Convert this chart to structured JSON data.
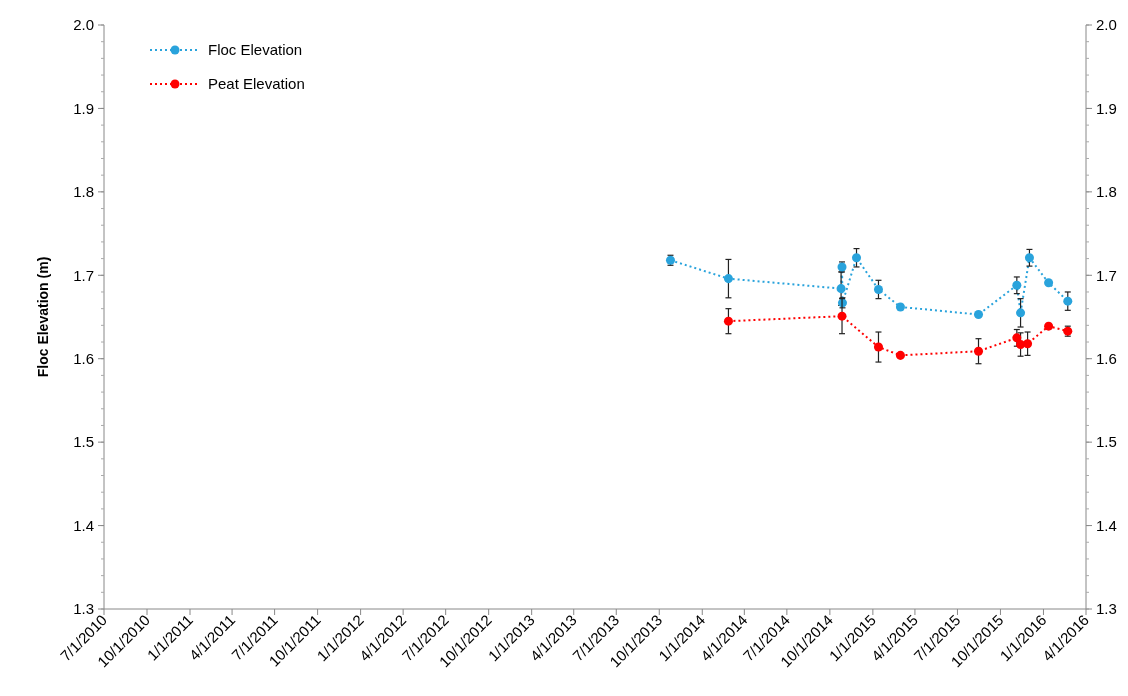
{
  "chart_data": {
    "type": "line",
    "ylabel": "Floc Elevation (m)",
    "legend": "top left",
    "marker": "circle",
    "line_style": "dotted",
    "grid": false,
    "xlim": [
      "2010-07-01",
      "2016-04-01"
    ],
    "xticks": [
      {
        "value": "2010-07-01",
        "label": "7/1/2010"
      },
      {
        "value": "2010-10-01",
        "label": "10/1/2010"
      },
      {
        "value": "2011-01-01",
        "label": "1/1/2011"
      },
      {
        "value": "2011-04-01",
        "label": "4/1/2011"
      },
      {
        "value": "2011-07-01",
        "label": "7/1/2011"
      },
      {
        "value": "2011-10-01",
        "label": "10/1/2011"
      },
      {
        "value": "2012-01-01",
        "label": "1/1/2012"
      },
      {
        "value": "2012-04-01",
        "label": "4/1/2012"
      },
      {
        "value": "2012-07-01",
        "label": "7/1/2012"
      },
      {
        "value": "2012-10-01",
        "label": "10/1/2012"
      },
      {
        "value": "2013-01-01",
        "label": "1/1/2013"
      },
      {
        "value": "2013-04-01",
        "label": "4/1/2013"
      },
      {
        "value": "2013-07-01",
        "label": "7/1/2013"
      },
      {
        "value": "2013-10-01",
        "label": "10/1/2013"
      },
      {
        "value": "2014-01-01",
        "label": "1/1/2014"
      },
      {
        "value": "2014-04-01",
        "label": "4/1/2014"
      },
      {
        "value": "2014-07-01",
        "label": "7/1/2014"
      },
      {
        "value": "2014-10-01",
        "label": "10/1/2014"
      },
      {
        "value": "2015-01-01",
        "label": "1/1/2015"
      },
      {
        "value": "2015-04-01",
        "label": "4/1/2015"
      },
      {
        "value": "2015-07-01",
        "label": "7/1/2015"
      },
      {
        "value": "2015-10-01",
        "label": "10/1/2015"
      },
      {
        "value": "2016-01-01",
        "label": "1/1/2016"
      },
      {
        "value": "2016-04-01",
        "label": "4/1/2016"
      }
    ],
    "ylim": [
      1.3,
      2.0
    ],
    "yticks": [
      1.3,
      1.4,
      1.5,
      1.6,
      1.7,
      1.8,
      1.9,
      {
        "value": 2.0,
        "label": "2.0"
      }
    ],
    "y2lim": [
      1.3,
      2.0
    ],
    "y2ticks": [
      1.3,
      1.4,
      1.5,
      1.6,
      1.7,
      1.8,
      1.9,
      {
        "value": 2.0,
        "label": "2.0"
      }
    ],
    "series": [
      {
        "name": "Floc Elevation",
        "color": "#29a3dc",
        "x": [
          "2013-10-25",
          "2014-02-26",
          "2014-10-25",
          "2014-10-27",
          "2014-10-28",
          "2014-11-27",
          "2015-01-13",
          "2015-03-01",
          "2015-08-15",
          "2015-11-05",
          "2015-11-13",
          "2015-12-02",
          "2016-01-12",
          "2016-02-22"
        ],
        "values": [
          1.718,
          1.696,
          1.684,
          1.71,
          1.667,
          1.721,
          1.683,
          1.662,
          1.653,
          1.688,
          1.655,
          1.721,
          1.691,
          1.669
        ],
        "errors": [
          0.006,
          0.023,
          0.02,
          0.006,
          0.006,
          0.011,
          0.011,
          null,
          null,
          0.01,
          0.017,
          0.01,
          null,
          0.011
        ]
      },
      {
        "name": "Peat Elevation",
        "color": "#ff0000",
        "x": [
          "2014-02-26",
          "2014-10-27",
          "2015-01-13",
          "2015-03-01",
          "2015-08-15",
          "2015-11-05",
          "2015-11-13",
          "2015-11-28",
          "2016-01-12",
          "2016-02-22"
        ],
        "values": [
          1.645,
          1.651,
          1.614,
          1.604,
          1.609,
          1.625,
          1.617,
          1.618,
          1.639,
          1.633
        ],
        "errors": [
          0.015,
          0.021,
          0.018,
          null,
          0.015,
          0.01,
          0.014,
          0.014,
          null,
          0.006
        ]
      }
    ]
  }
}
